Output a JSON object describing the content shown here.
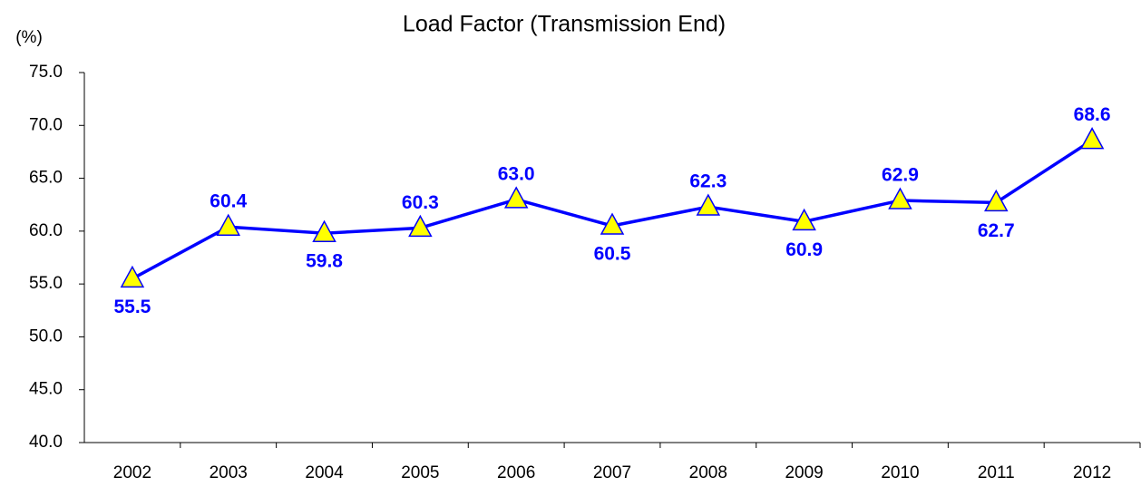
{
  "chart_data": {
    "type": "line",
    "title": "Load Factor (Transmission End)",
    "y_label": "(%)",
    "categories": [
      "2002",
      "2003",
      "2004",
      "2005",
      "2006",
      "2007",
      "2008",
      "2009",
      "2010",
      "2011",
      "2012"
    ],
    "series": [
      {
        "name": "Load Factor",
        "color": "#0000ff",
        "marker_color": "#ffff00",
        "values": [
          55.5,
          60.4,
          59.8,
          60.3,
          63.0,
          60.5,
          62.3,
          60.9,
          62.9,
          62.7,
          68.6
        ],
        "value_labels": [
          "55.5",
          "60.4",
          "59.8",
          "60.3",
          "63.0",
          "60.5",
          "62.3",
          "60.9",
          "62.9",
          "62.7",
          "68.6"
        ]
      }
    ],
    "ylim": [
      40,
      75
    ],
    "yticks": [
      {
        "value": 40,
        "label": "40.0"
      },
      {
        "value": 45,
        "label": "45.0"
      },
      {
        "value": 50,
        "label": "50.0"
      },
      {
        "value": 55,
        "label": "55.0"
      },
      {
        "value": 60,
        "label": "60.0"
      },
      {
        "value": 65,
        "label": "65.0"
      },
      {
        "value": 70,
        "label": "70.0"
      },
      {
        "value": 75,
        "label": "75.0"
      }
    ],
    "grid": false
  }
}
